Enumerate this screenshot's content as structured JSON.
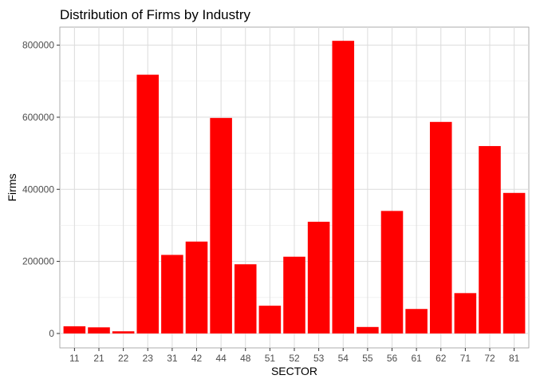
{
  "chart_data": {
    "type": "bar",
    "title": "Distribution of Firms by Industry",
    "xlabel": "SECTOR",
    "ylabel": "Firms",
    "categories": [
      "11",
      "21",
      "22",
      "23",
      "31",
      "42",
      "44",
      "48",
      "51",
      "52",
      "53",
      "54",
      "55",
      "56",
      "61",
      "62",
      "71",
      "72",
      "81"
    ],
    "values": [
      20000,
      17000,
      6000,
      718000,
      218000,
      255000,
      598000,
      192000,
      77000,
      213000,
      310000,
      812000,
      18000,
      340000,
      68000,
      587000,
      112000,
      520000,
      390000
    ],
    "ylim": [
      -40000,
      850000
    ],
    "yticks": [
      0,
      200000,
      400000,
      600000,
      800000
    ],
    "ytick_labels": [
      "0",
      "200000",
      "400000",
      "600000",
      "800000"
    ],
    "bar_color": "#ff0000",
    "grid": true,
    "legend": "none"
  }
}
